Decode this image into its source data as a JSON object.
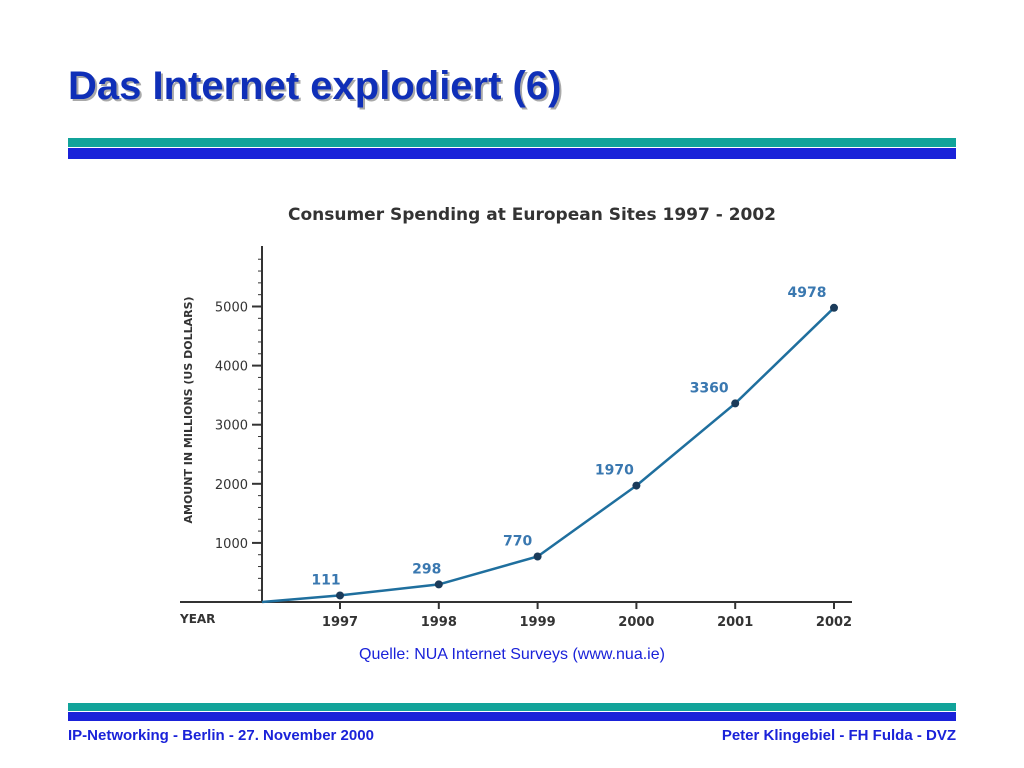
{
  "slide": {
    "title": "Das Internet explodiert (6)",
    "source": "Quelle: NUA Internet Surveys (www.nua.ie)",
    "footer_left": "IP-Networking - Berlin - 27. November 2000",
    "footer_right": "Peter Klingebiel - FH Fulda - DVZ"
  },
  "colors": {
    "title": "#0f2fb8",
    "stripe_teal": "#11a39a",
    "stripe_blue": "#1a22d9",
    "line": "#1f6f9e",
    "data_label": "#3a78b0",
    "axis": "#333333"
  },
  "chart_data": {
    "type": "line",
    "title": "Consumer Spending at European Sites 1997 - 2002",
    "xlabel": "YEAR",
    "ylabel": "AMOUNT IN MILLIONS  (US DOLLARS)",
    "categories": [
      "1997",
      "1998",
      "1999",
      "2000",
      "2001",
      "2002"
    ],
    "values": [
      111,
      298,
      770,
      1970,
      3360,
      4978
    ],
    "data_labels": [
      "111",
      "298",
      "770",
      "1970",
      "3360",
      "4978"
    ],
    "yticks": [
      1000,
      2000,
      3000,
      4000,
      5000
    ],
    "ylim": [
      0,
      6000
    ],
    "grid": false,
    "legend": "none"
  }
}
